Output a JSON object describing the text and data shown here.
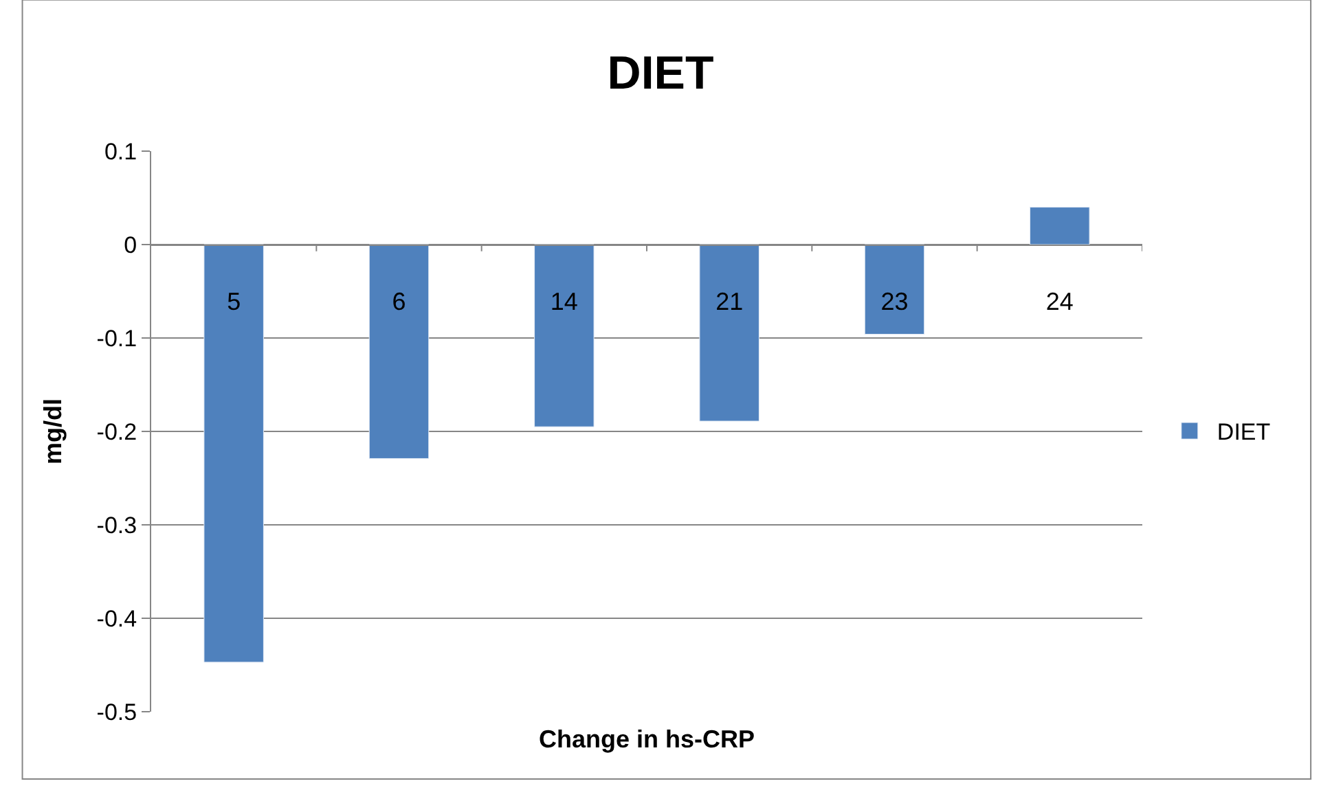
{
  "chart_data": {
    "type": "bar",
    "title": "DIET",
    "xlabel": "Change in hs-CRP",
    "ylabel": "mg/dl",
    "categories": [
      "5",
      "6",
      "14",
      "21",
      "23",
      "24"
    ],
    "series": [
      {
        "name": "DIET",
        "color": "#4f81bd",
        "values": [
          -0.447,
          -0.229,
          -0.195,
          -0.189,
          -0.096,
          0.04
        ]
      }
    ],
    "ylim": [
      -0.5,
      0.1
    ],
    "yticks": [
      0.1,
      0,
      -0.1,
      -0.2,
      -0.3,
      -0.4,
      -0.5
    ],
    "grid": "y",
    "legend": "right"
  }
}
